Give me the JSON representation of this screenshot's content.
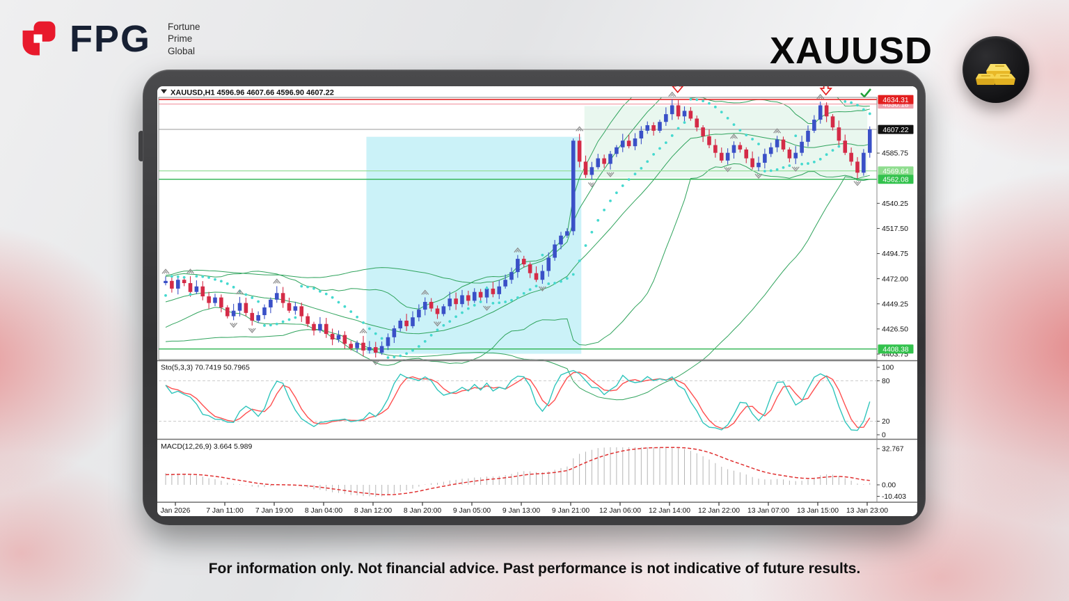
{
  "branding": {
    "logo_text": "FPG",
    "logo_subtitle": "Fortune\nPrime\nGlobal",
    "logo_red": "#e8192c",
    "logo_navy": "#172033"
  },
  "header": {
    "symbol_title": "XAUUSD"
  },
  "footer": {
    "disclaimer": "For information only. Not financial advice. Past performance is not indicative of future results."
  },
  "chart_data": {
    "type": "candlestick",
    "title": "XAUUSD,H1  4596.96 4607.66 4596.90 4607.22",
    "symbol": "XAUUSD",
    "timeframe": "H1",
    "ohlc_summary": {
      "open": "4596.96",
      "high": "4607.66",
      "low": "4596.90",
      "close": "4607.22"
    },
    "ylim": [
      4403.75,
      4634.31
    ],
    "x_labels": [
      "Jan 2026",
      "7 Jan 11:00",
      "7 Jan 19:00",
      "8 Jan 04:00",
      "8 Jan 12:00",
      "8 Jan 20:00",
      "9 Jan 05:00",
      "9 Jan 13:00",
      "9 Jan 21:00",
      "12 Jan 06:00",
      "12 Jan 14:00",
      "12 Jan 22:00",
      "13 Jan 07:00",
      "13 Jan 15:00",
      "13 Jan 23:00"
    ],
    "pre_history_closes": [
      4420,
      4422,
      4424,
      4426,
      4428,
      4430,
      4432,
      4434,
      4436,
      4438,
      4440,
      4442,
      4444,
      4446,
      4448,
      4450,
      4452,
      4454,
      4456,
      4458,
      4460,
      4462,
      4464,
      4466,
      4468
    ],
    "closes": [
      4470,
      4463,
      4471,
      4468,
      4460,
      4465,
      4456,
      4450,
      4455,
      4446,
      4438,
      4443,
      4450,
      4441,
      4434,
      4439,
      4446,
      4453,
      4459,
      4450,
      4443,
      4447,
      4438,
      4431,
      4425,
      4431,
      4422,
      4417,
      4421,
      4413,
      4409,
      4414,
      4407,
      4410,
      4405,
      4411,
      4419,
      4427,
      4434,
      4429,
      4437,
      4444,
      4451,
      4445,
      4440,
      4447,
      4454,
      4449,
      4457,
      4452,
      4460,
      4455,
      4463,
      4458,
      4465,
      4471,
      4478,
      4490,
      4485,
      4477,
      4471,
      4479,
      4491,
      4503,
      4511,
      4515,
      4597,
      4578,
      4566,
      4573,
      4581,
      4576,
      4585,
      4591,
      4597,
      4592,
      4599,
      4606,
      4611,
      4606,
      4614,
      4621,
      4629,
      4619,
      4624,
      4617,
      4609,
      4601,
      4593,
      4586,
      4579,
      4586,
      4593,
      4589,
      4581,
      4573,
      4577,
      4585,
      4591,
      4598,
      4589,
      4581,
      4586,
      4596,
      4606,
      4616,
      4629,
      4619,
      4609,
      4597,
      4586,
      4578,
      4568,
      4586,
      4607.22
    ],
    "price_axis_ticks": [
      "4585.75",
      "4540.25",
      "4517.50",
      "4494.75",
      "4472.00",
      "4449.25",
      "4426.50",
      "4403.75"
    ],
    "price_levels": [
      {
        "value": 4630.18,
        "label": "4630.18",
        "line": "#f3a6af",
        "badge": "#f0a0ab",
        "width": 1.4
      },
      {
        "value": 4634.31,
        "label": "4634.31",
        "line": "#e63434",
        "badge": "#e31e1e",
        "width": 1.8
      },
      {
        "value": 4607.22,
        "label": "4607.22",
        "line": "#9a9a9a",
        "badge": "#111111",
        "width": 1
      },
      {
        "value": 4569.64,
        "label": "4569.64",
        "line": "#97dd9b",
        "badge": "#8fdd8f",
        "width": 1.2
      },
      {
        "value": 4562.08,
        "label": "4562.08",
        "line": "#2cb34f",
        "badge": "#33c24d",
        "width": 1.4
      },
      {
        "value": 4408.38,
        "label": "4408.38",
        "line": "#2cb34f",
        "badge": "#33c24d",
        "width": 1.4
      }
    ],
    "highlight_boxes": [
      {
        "i1": 32.5,
        "i2": 67.3,
        "p1": 4404.0,
        "p2": 4600.5,
        "color": "#cbf2f8"
      },
      {
        "i1": 67.8,
        "i2": 113.6,
        "p1": 4563.5,
        "p2": 4628.3,
        "color": "#e9f7ef"
      }
    ],
    "sell_arrow_indices": [
      82,
      106
    ],
    "checkmark_color": "#21a038",
    "indicators": {
      "stochastic": {
        "label": "Sto(5,3,3) 70.7419 50.7965",
        "axis_labels": [
          "100",
          "80",
          "20",
          "0"
        ],
        "axis_values": [
          100,
          80,
          20,
          0
        ],
        "dashed_levels": [
          80,
          20
        ],
        "k_color": "#2fc5bc",
        "d_color": "#ff4f4f"
      },
      "macd": {
        "label": "MACD(12,26,9) 3.664 5.989",
        "axis_labels": [
          "32.767",
          "0.00",
          "-10.403"
        ],
        "axis_values": [
          32.767,
          0,
          -10.403
        ],
        "hist_color": "#b5b5b5",
        "signal_color": "#e03030"
      }
    },
    "colors": {
      "up": "#3a50c7",
      "down": "#d42b47",
      "band": "#2fa35c",
      "sar": "#45d9cf",
      "fractal": "#8f8f8f",
      "sell_arrow": "#e22020"
    }
  }
}
